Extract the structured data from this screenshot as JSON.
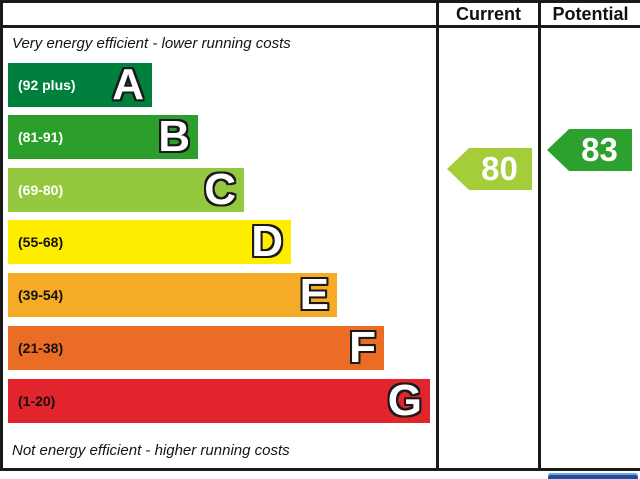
{
  "header": {
    "current": "Current",
    "potential": "Potential"
  },
  "captions": {
    "top": "Very energy efficient - lower running costs",
    "bottom": "Not energy efficient - higher running costs"
  },
  "ratings": {
    "current": {
      "value": "80",
      "band": "C",
      "color": "#a4cd39"
    },
    "potential": {
      "value": "83",
      "band": "B",
      "color": "#2da12d"
    }
  },
  "bands": [
    {
      "letter": "A",
      "range": "(92 plus)",
      "color": "#00803d",
      "label_color": "#ffffff"
    },
    {
      "letter": "B",
      "range": "(81-91)",
      "color": "#2b9e2b",
      "label_color": "#ffffff"
    },
    {
      "letter": "C",
      "range": "(69-80)",
      "color": "#94c83e",
      "label_color": "#ffffff"
    },
    {
      "letter": "D",
      "range": "(55-68)",
      "color": "#ffed00",
      "label_color": "#111111"
    },
    {
      "letter": "E",
      "range": "(39-54)",
      "color": "#f5ab25",
      "label_color": "#111111"
    },
    {
      "letter": "F",
      "range": "(21-38)",
      "color": "#ea6c25",
      "label_color": "#111111"
    },
    {
      "letter": "G",
      "range": "(1-20)",
      "color": "#e2242c",
      "label_color": "#111111"
    }
  ],
  "chart_data": {
    "type": "bar",
    "title": "Energy efficiency rating chart",
    "categories": [
      "A",
      "B",
      "C",
      "D",
      "E",
      "F",
      "G"
    ],
    "band_ranges": [
      "92 plus",
      "81-91",
      "69-80",
      "55-68",
      "39-54",
      "21-38",
      "1-20"
    ],
    "band_colors": [
      "#00803d",
      "#2b9e2b",
      "#94c83e",
      "#ffed00",
      "#f5ab25",
      "#ea6c25",
      "#e2242c"
    ],
    "series": [
      {
        "name": "Current",
        "values": [
          80
        ]
      },
      {
        "name": "Potential",
        "values": [
          83
        ]
      }
    ],
    "xlabel": "",
    "ylabel": "",
    "value_range": [
      1,
      100
    ],
    "legend_position": "top-right-columns",
    "annotations": [
      "Very energy efficient - lower running costs",
      "Not energy efficient - higher running costs"
    ]
  }
}
